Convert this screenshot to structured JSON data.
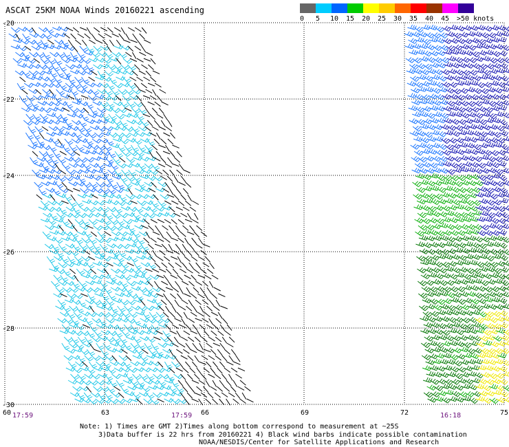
{
  "title": "ASCAT 25KM NOAA Winds 20160221 ascending",
  "legend": {
    "colors": [
      "#666666",
      "#00ccff",
      "#0066ff",
      "#00cc00",
      "#ffff00",
      "#ffcc00",
      "#ff6600",
      "#ff0000",
      "#993300",
      "#ff00ff",
      "#330099"
    ],
    "labels": [
      "0",
      "5",
      "10",
      "15",
      "20",
      "25",
      "30",
      "35",
      "40",
      "45",
      ">50 knots"
    ]
  },
  "axes": {
    "lon_ticks": [
      "60",
      "63",
      "66",
      "69",
      "72",
      "75"
    ],
    "lat_ticks": [
      "-20",
      "-22",
      "-24",
      "-26",
      "-28",
      "-30"
    ]
  },
  "times": [
    "17:59",
    "17:59",
    "16:18"
  ],
  "notes": [
    "Note: 1) Times are GMT 2)Times along bottom correspond to measurement at ~25S",
    "3)Data buffer is 22 hrs from 20160221 4) Black wind barbs indicate possible contamination",
    "NOAA/NESDIS/Center for Satellite Applications and Research"
  ],
  "colors": {
    "barb_black": "#000000",
    "barb_cyan": "#22c8e8",
    "barb_blue": "#1e78ff",
    "barb_navy": "#1a1ab4",
    "barb_green": "#10b010",
    "barb_darkgreen": "#087808",
    "barb_yellow": "#f0e800",
    "grid": "#000000"
  }
}
